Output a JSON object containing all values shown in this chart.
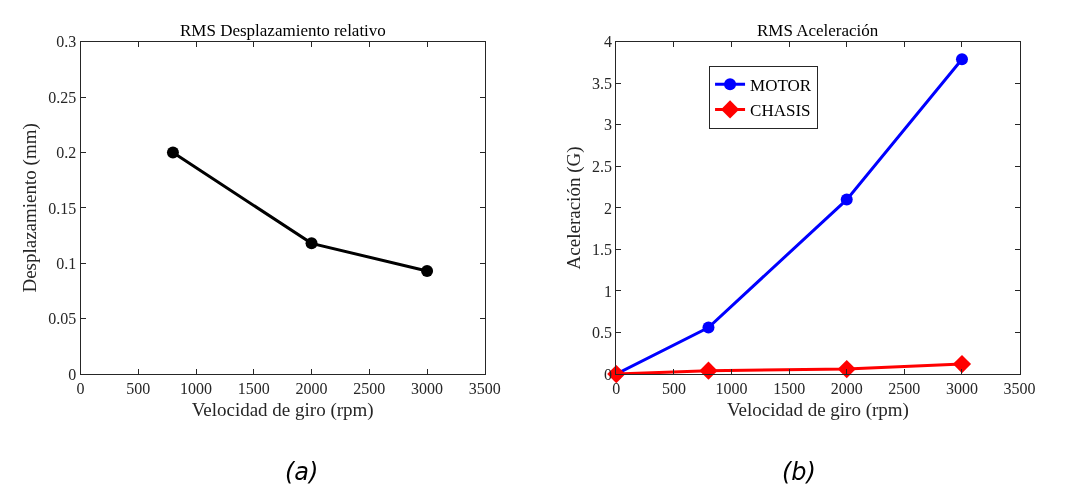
{
  "chart_data": [
    {
      "type": "line",
      "title": "RMS Desplazamiento relativo",
      "xlabel": "Velocidad de giro (rpm)",
      "ylabel": "Desplazamiento (mm)",
      "annotations": [
        "(a)"
      ],
      "x": [
        800,
        2000,
        3000
      ],
      "marker": "circle",
      "line_style": "solid",
      "series": [
        {
          "color": "#000000",
          "values": [
            0.2,
            0.118,
            0.093
          ]
        }
      ],
      "xlim": [
        0,
        3500
      ],
      "xticks": [
        0,
        500,
        1000,
        1500,
        2000,
        2500,
        3000,
        3500
      ],
      "ylim": [
        0,
        0.3
      ],
      "yticks": [
        0,
        0.05,
        0.1,
        0.15,
        0.2,
        0.25,
        0.3
      ],
      "legend": false
    },
    {
      "type": "line",
      "title": "RMS Aceleración",
      "xlabel": "Velocidad de giro (rpm)",
      "ylabel": "Aceleración (G)",
      "annotations": [
        "(b)"
      ],
      "x": [
        0,
        800,
        2000,
        3000
      ],
      "line_style": "solid",
      "series": [
        {
          "name": "MOTOR",
          "color": "#0000ff",
          "marker": "circle",
          "values": [
            0,
            0.56,
            2.1,
            3.79
          ]
        },
        {
          "name": "CHASIS",
          "color": "#ff0000",
          "marker": "diamond",
          "values": [
            0,
            0.04,
            0.06,
            0.12
          ]
        }
      ],
      "xlim": [
        0,
        3500
      ],
      "xticks": [
        0,
        500,
        1000,
        1500,
        2000,
        2500,
        3000,
        3500
      ],
      "ylim": [
        0,
        4
      ],
      "yticks": [
        0,
        0.5,
        1,
        1.5,
        2,
        2.5,
        3,
        3.5,
        4
      ],
      "legend": "top left"
    }
  ]
}
